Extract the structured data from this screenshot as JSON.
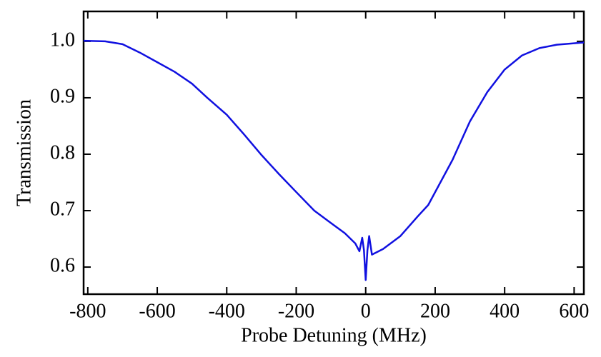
{
  "chart_data": {
    "type": "line",
    "x_label": "Probe Detuning (MHz)",
    "y_label": "Transmission",
    "x": [
      -812,
      -750,
      -700,
      -650,
      -600,
      -550,
      -500,
      -456,
      -400,
      -350,
      -302,
      -250,
      -200,
      -148,
      -100,
      -60,
      -30,
      -18,
      -10,
      -5,
      0,
      5,
      10,
      18,
      50,
      100,
      150,
      180,
      250,
      300,
      350,
      400,
      450,
      500,
      550,
      628
    ],
    "series": [
      {
        "color": "#1010e0",
        "values": [
          1.001,
          1.0,
          0.995,
          0.98,
          0.963,
          0.946,
          0.925,
          0.9,
          0.87,
          0.835,
          0.8,
          0.765,
          0.733,
          0.7,
          0.678,
          0.66,
          0.642,
          0.628,
          0.652,
          0.63,
          0.577,
          0.63,
          0.655,
          0.622,
          0.632,
          0.655,
          0.69,
          0.71,
          0.79,
          0.858,
          0.91,
          0.95,
          0.975,
          0.988,
          0.994,
          0.998
        ]
      }
    ],
    "xlim": [
      -812,
      628
    ],
    "ylim": [
      0.552,
      1.053
    ],
    "xticks": [
      -800,
      -600,
      -400,
      -200,
      0,
      200,
      400,
      600
    ],
    "yticks": [
      0.6,
      0.7,
      0.8,
      0.9,
      {
        "value": 1.0,
        "label": "1.0"
      }
    ]
  }
}
